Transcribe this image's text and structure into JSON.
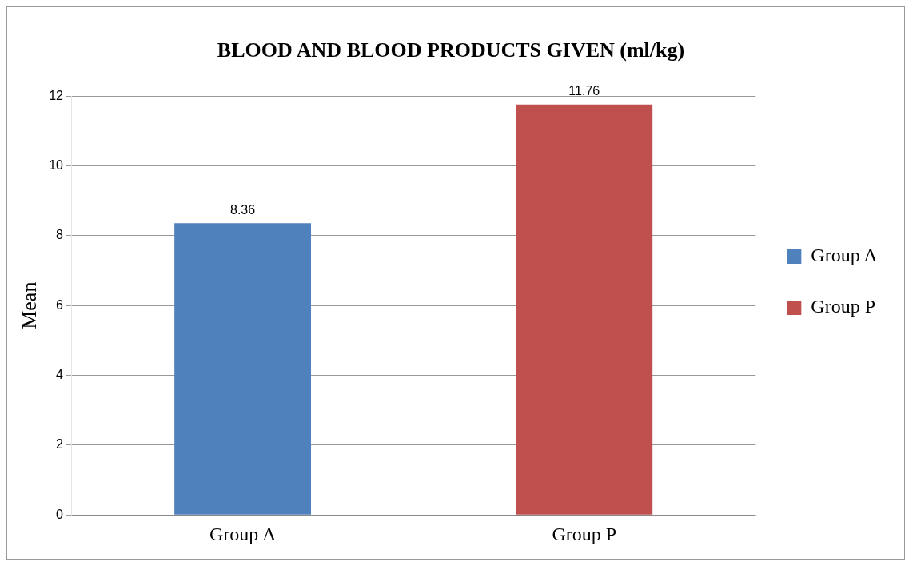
{
  "chart_data": {
    "type": "bar",
    "title": "BLOOD AND BLOOD PRODUCTS GIVEN (ml/kg)",
    "ylabel": "Mean",
    "categories": [
      "Group A",
      "Group P"
    ],
    "series": [
      {
        "name": "Group A",
        "color": "#4f81bd",
        "values": [
          8.36,
          null
        ]
      },
      {
        "name": "Group P",
        "color": "#c0504d",
        "values": [
          null,
          11.76
        ]
      }
    ],
    "ylim": [
      0,
      12
    ],
    "yticks": [
      0,
      2,
      4,
      6,
      8,
      10,
      12
    ],
    "grid": "y",
    "legend": "right",
    "data_labels": true
  }
}
